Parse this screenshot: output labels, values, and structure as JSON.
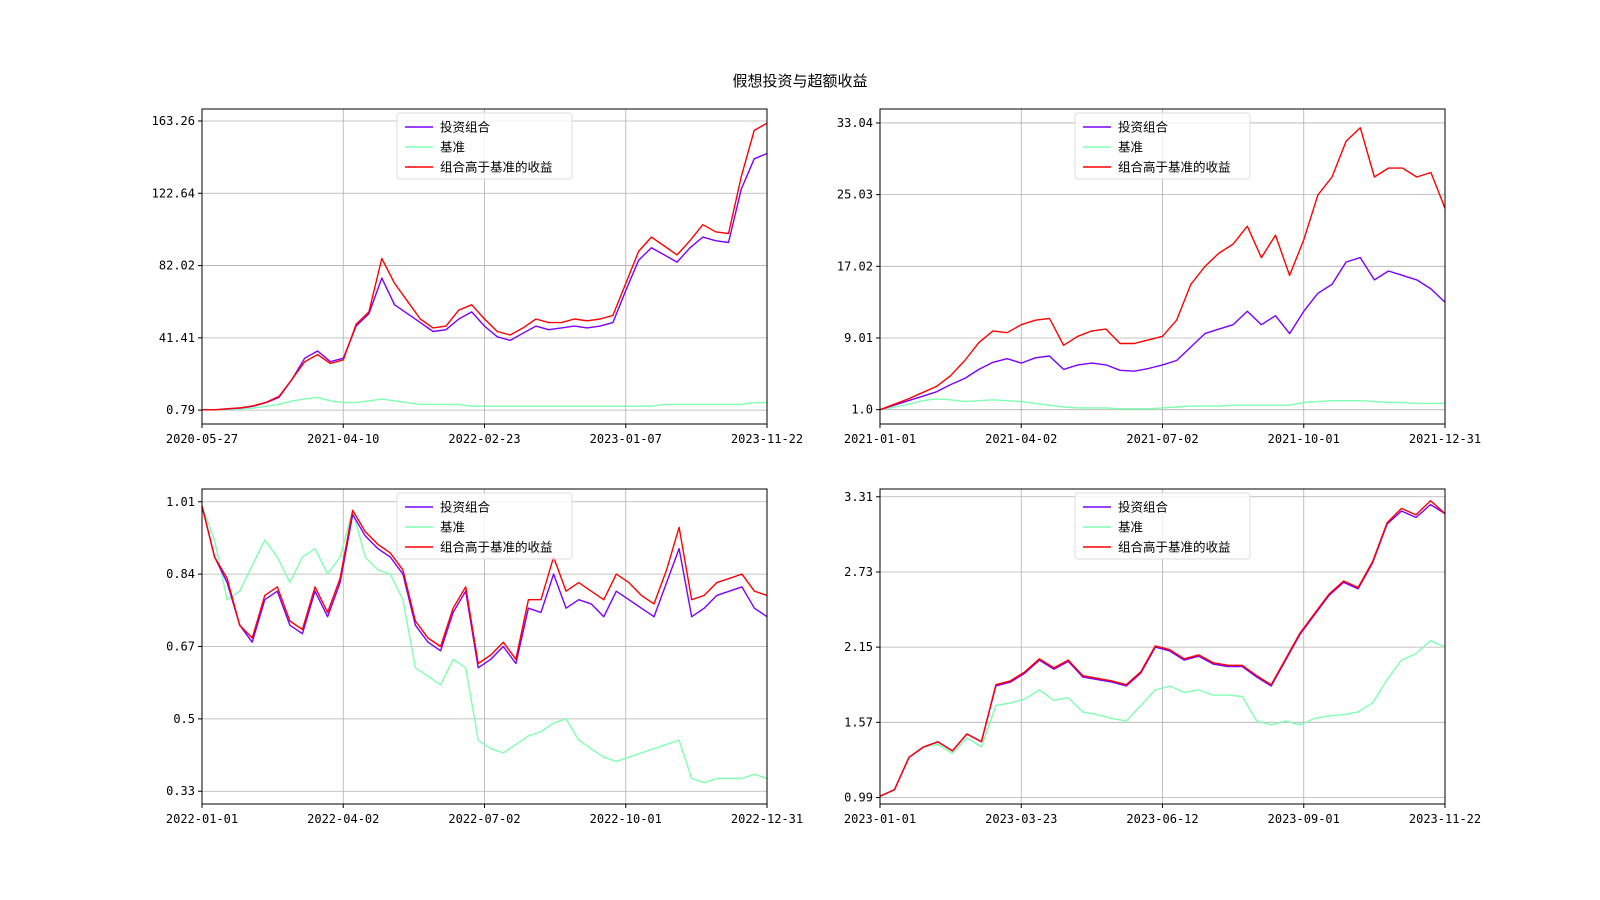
{
  "figure": {
    "suptitle": "假想投资与超额收益",
    "colors": {
      "portfolio": "#7b00ff",
      "benchmark": "#80ffb0",
      "excess": "#ff0000"
    },
    "legend_labels": [
      "投资组合",
      "基准",
      "组合高于基准的收益"
    ]
  },
  "chart_data": [
    {
      "type": "line",
      "xticks": [
        "2020-05-27",
        "2021-04-10",
        "2022-02-23",
        "2023-01-07",
        "2023-11-22"
      ],
      "yticks": [
        "0.79",
        "41.41",
        "82.02",
        "122.64",
        "163.26"
      ],
      "ylim": [
        -7,
        170
      ],
      "grid": true,
      "legend_position": "upper center",
      "series": [
        {
          "name": "投资组合",
          "values": [
            1,
            1,
            1.5,
            2,
            3,
            5,
            8,
            18,
            30,
            34,
            28,
            30,
            48,
            55,
            75,
            60,
            55,
            50,
            45,
            46,
            52,
            56,
            48,
            42,
            40,
            44,
            48,
            46,
            47,
            48,
            47,
            48,
            50,
            68,
            85,
            92,
            88,
            84,
            92,
            98,
            96,
            95,
            125,
            142,
            145
          ]
        },
        {
          "name": "基准",
          "values": [
            1,
            1,
            1.2,
            1.5,
            2,
            3,
            4,
            6,
            7,
            8,
            6,
            5,
            5,
            6,
            7,
            6,
            5,
            4,
            4,
            4,
            4,
            3,
            3,
            3,
            3,
            3,
            3,
            3,
            3,
            3,
            3,
            3,
            3,
            3,
            3,
            3,
            4,
            4,
            4,
            4,
            4,
            4,
            4,
            5,
            5
          ]
        },
        {
          "name": "组合高于基准的收益",
          "values": [
            1,
            1,
            1.6,
            2.1,
            3.2,
            5.2,
            8.5,
            18,
            28,
            32,
            27,
            29,
            49,
            56,
            86,
            72,
            62,
            52,
            47,
            48,
            57,
            60,
            52,
            45,
            43,
            47,
            52,
            50,
            50,
            52,
            51,
            52,
            54,
            72,
            90,
            98,
            93,
            88,
            96,
            105,
            101,
            100,
            132,
            158,
            162
          ]
        }
      ]
    },
    {
      "type": "line",
      "xticks": [
        "2021-01-01",
        "2021-04-02",
        "2021-07-02",
        "2021-10-01",
        "2021-12-31"
      ],
      "yticks": [
        "1.0",
        "9.01",
        "17.02",
        "25.03",
        "33.04"
      ],
      "ylim": [
        -0.6,
        34.6
      ],
      "grid": true,
      "legend_position": "upper center",
      "series": [
        {
          "name": "投资组合",
          "values": [
            1,
            1.5,
            2,
            2.5,
            3,
            3.8,
            4.5,
            5.5,
            6.3,
            6.7,
            6.2,
            6.8,
            7,
            5.5,
            6,
            6.2,
            6,
            5.4,
            5.3,
            5.6,
            6,
            6.5,
            8,
            9.5,
            10,
            10.5,
            12,
            10.5,
            11.5,
            9.5,
            12,
            14,
            15,
            17.5,
            18,
            15.5,
            16.5,
            16,
            15.5,
            14.5,
            13
          ]
        },
        {
          "name": "基准",
          "values": [
            1,
            1.3,
            1.6,
            2,
            2.2,
            2.1,
            1.9,
            2,
            2.1,
            2,
            1.9,
            1.7,
            1.5,
            1.3,
            1.2,
            1.2,
            1.2,
            1.1,
            1.1,
            1.1,
            1.2,
            1.3,
            1.4,
            1.4,
            1.4,
            1.5,
            1.5,
            1.5,
            1.5,
            1.5,
            1.8,
            1.9,
            2,
            2,
            2,
            1.9,
            1.8,
            1.8,
            1.7,
            1.7,
            1.7
          ]
        },
        {
          "name": "组合高于基准的收益",
          "values": [
            1,
            1.6,
            2.2,
            2.9,
            3.6,
            4.8,
            6.5,
            8.5,
            9.8,
            9.6,
            10.5,
            11,
            11.2,
            8.2,
            9.2,
            9.8,
            10,
            8.4,
            8.4,
            8.8,
            9.2,
            11,
            15,
            17,
            18.5,
            19.5,
            21.5,
            18,
            20.5,
            16,
            20,
            25,
            27,
            31,
            32.5,
            27,
            28,
            28,
            27,
            27.5,
            23.5
          ]
        }
      ]
    },
    {
      "type": "line",
      "xticks": [
        "2022-01-01",
        "2022-04-02",
        "2022-07-02",
        "2022-10-01",
        "2022-12-31"
      ],
      "yticks": [
        "0.33",
        "0.5",
        "0.67",
        "0.84",
        "1.01"
      ],
      "ylim": [
        0.3,
        1.04
      ],
      "grid": true,
      "legend_position": "upper center",
      "series": [
        {
          "name": "投资组合",
          "values": [
            1.0,
            0.88,
            0.82,
            0.72,
            0.68,
            0.78,
            0.8,
            0.72,
            0.7,
            0.8,
            0.74,
            0.82,
            0.98,
            0.93,
            0.9,
            0.88,
            0.84,
            0.72,
            0.68,
            0.66,
            0.75,
            0.8,
            0.62,
            0.64,
            0.67,
            0.63,
            0.76,
            0.75,
            0.84,
            0.76,
            0.78,
            0.77,
            0.74,
            0.8,
            0.78,
            0.76,
            0.74,
            0.82,
            0.9,
            0.74,
            0.76,
            0.79,
            0.8,
            0.81,
            0.76,
            0.74
          ]
        },
        {
          "name": "基准",
          "values": [
            1.0,
            0.92,
            0.78,
            0.8,
            0.86,
            0.92,
            0.88,
            0.82,
            0.88,
            0.9,
            0.84,
            0.88,
            0.99,
            0.88,
            0.85,
            0.84,
            0.78,
            0.62,
            0.6,
            0.58,
            0.64,
            0.62,
            0.45,
            0.43,
            0.42,
            0.44,
            0.46,
            0.47,
            0.49,
            0.5,
            0.45,
            0.43,
            0.41,
            0.4,
            0.41,
            0.42,
            0.43,
            0.44,
            0.45,
            0.36,
            0.35,
            0.36,
            0.36,
            0.36,
            0.37,
            0.36
          ]
        },
        {
          "name": "组合高于基准的收益",
          "values": [
            1.0,
            0.88,
            0.83,
            0.72,
            0.69,
            0.79,
            0.81,
            0.73,
            0.71,
            0.81,
            0.75,
            0.83,
            0.99,
            0.94,
            0.91,
            0.89,
            0.85,
            0.73,
            0.69,
            0.67,
            0.76,
            0.81,
            0.63,
            0.65,
            0.68,
            0.64,
            0.78,
            0.78,
            0.88,
            0.8,
            0.82,
            0.8,
            0.78,
            0.84,
            0.82,
            0.79,
            0.77,
            0.85,
            0.95,
            0.78,
            0.79,
            0.82,
            0.83,
            0.84,
            0.8,
            0.79
          ]
        }
      ]
    },
    {
      "type": "line",
      "xticks": [
        "2023-01-01",
        "2023-03-23",
        "2023-06-12",
        "2023-09-01",
        "2023-11-22"
      ],
      "yticks": [
        "0.99",
        "1.57",
        "2.15",
        "2.73",
        "3.31"
      ],
      "ylim": [
        0.94,
        3.37
      ],
      "grid": true,
      "legend_position": "upper center",
      "series": [
        {
          "name": "投资组合",
          "values": [
            1.0,
            1.05,
            1.3,
            1.38,
            1.42,
            1.35,
            1.48,
            1.42,
            1.85,
            1.88,
            1.95,
            2.05,
            1.98,
            2.04,
            1.92,
            1.9,
            1.88,
            1.85,
            1.95,
            2.15,
            2.12,
            2.05,
            2.08,
            2.02,
            2.0,
            2.0,
            1.92,
            1.85,
            2.05,
            2.25,
            2.4,
            2.55,
            2.65,
            2.6,
            2.8,
            3.1,
            3.2,
            3.15,
            3.25,
            3.18
          ]
        },
        {
          "name": "基准",
          "values": [
            1.0,
            1.05,
            1.3,
            1.38,
            1.4,
            1.33,
            1.45,
            1.38,
            1.7,
            1.72,
            1.75,
            1.82,
            1.74,
            1.76,
            1.65,
            1.63,
            1.6,
            1.58,
            1.7,
            1.82,
            1.85,
            1.8,
            1.82,
            1.78,
            1.78,
            1.77,
            1.58,
            1.55,
            1.58,
            1.55,
            1.6,
            1.62,
            1.63,
            1.65,
            1.72,
            1.9,
            2.05,
            2.1,
            2.2,
            2.15
          ]
        },
        {
          "name": "组合高于基准的收益",
          "values": [
            1.0,
            1.05,
            1.3,
            1.38,
            1.42,
            1.35,
            1.48,
            1.42,
            1.86,
            1.89,
            1.96,
            2.06,
            1.99,
            2.05,
            1.93,
            1.91,
            1.89,
            1.86,
            1.96,
            2.16,
            2.13,
            2.06,
            2.09,
            2.03,
            2.01,
            2.01,
            1.93,
            1.86,
            2.06,
            2.26,
            2.41,
            2.56,
            2.66,
            2.61,
            2.81,
            3.11,
            3.22,
            3.17,
            3.28,
            3.18
          ]
        }
      ]
    }
  ]
}
